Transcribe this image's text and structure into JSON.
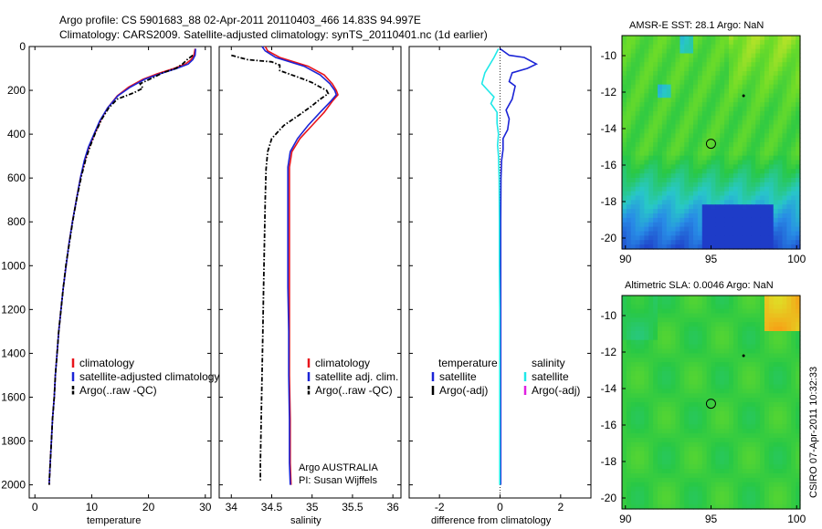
{
  "title": {
    "line1": "Argo profile: CS 5901683_88 02-Apr-2011 20110403_466 14.83S 94.997E",
    "line2": "Climatology: CARS2009. Satellite-adjusted climatology: synTS_20110401.nc (1d earlier)"
  },
  "side_label": "CSIRO 07-Apr-2011 10:32:33",
  "colors": {
    "climatology": "#e8141b",
    "satellite": "#1b24d6",
    "argo": "#000000",
    "sat_salinity": "#20e8e8",
    "argo_adj_salinity": "#e020e0"
  },
  "chart_data": [
    {
      "id": "temperature",
      "type": "line",
      "xlabel": "temperature",
      "xlim": [
        -1,
        31
      ],
      "ylim": [
        2060,
        0
      ],
      "y_ticks": [
        0,
        200,
        400,
        600,
        800,
        1000,
        1200,
        1400,
        1600,
        1800,
        2000
      ],
      "x_ticks": [
        0,
        10,
        20,
        30
      ],
      "legend": [
        {
          "label": "climatology",
          "series": "climatology"
        },
        {
          "label": "satellite-adjusted climatology",
          "series": "satellite"
        },
        {
          "label": "Argo(..raw -QC)",
          "series": "argo"
        }
      ],
      "series": [
        {
          "name": "climatology",
          "color_key": "climatology",
          "style": "solid",
          "points": [
            [
              28.2,
              10
            ],
            [
              28.0,
              40
            ],
            [
              27.5,
              60
            ],
            [
              26.5,
              80
            ],
            [
              24.5,
              100
            ],
            [
              21.5,
              125
            ],
            [
              19.0,
              150
            ],
            [
              16.5,
              185
            ],
            [
              14.5,
              225
            ],
            [
              12.8,
              280
            ],
            [
              11.5,
              340
            ],
            [
              10.5,
              400
            ],
            [
              9.5,
              460
            ],
            [
              8.8,
              520
            ],
            [
              8.0,
              600
            ],
            [
              7.3,
              700
            ],
            [
              6.6,
              800
            ],
            [
              6.0,
              900
            ],
            [
              5.5,
              1000
            ],
            [
              5.0,
              1100
            ],
            [
              4.6,
              1200
            ],
            [
              4.2,
              1300
            ],
            [
              3.9,
              1400
            ],
            [
              3.6,
              1500
            ],
            [
              3.4,
              1600
            ],
            [
              3.1,
              1700
            ],
            [
              2.9,
              1800
            ],
            [
              2.7,
              1900
            ],
            [
              2.5,
              2000
            ]
          ]
        },
        {
          "name": "satellite",
          "color_key": "satellite",
          "style": "solid",
          "points": [
            [
              28.3,
              10
            ],
            [
              28.2,
              40
            ],
            [
              27.8,
              60
            ],
            [
              27.0,
              80
            ],
            [
              25.0,
              100
            ],
            [
              22.0,
              125
            ],
            [
              19.3,
              150
            ],
            [
              16.8,
              185
            ],
            [
              14.6,
              225
            ],
            [
              12.8,
              280
            ],
            [
              11.4,
              340
            ],
            [
              10.4,
              400
            ],
            [
              9.4,
              460
            ],
            [
              8.7,
              520
            ],
            [
              8.0,
              600
            ],
            [
              7.3,
              700
            ],
            [
              6.6,
              800
            ],
            [
              6.0,
              900
            ],
            [
              5.5,
              1000
            ],
            [
              5.0,
              1100
            ],
            [
              4.6,
              1200
            ],
            [
              4.2,
              1300
            ],
            [
              3.9,
              1400
            ],
            [
              3.6,
              1500
            ],
            [
              3.4,
              1600
            ],
            [
              3.1,
              1700
            ],
            [
              2.9,
              1800
            ],
            [
              2.7,
              1900
            ],
            [
              2.5,
              2000
            ]
          ]
        },
        {
          "name": "argo",
          "color_key": "argo",
          "style": "dashdot",
          "points": [
            [
              27.8,
              40
            ],
            [
              26.8,
              60
            ],
            [
              26.0,
              80
            ],
            [
              24.8,
              100
            ],
            [
              22.5,
              120
            ],
            [
              21.0,
              140
            ],
            [
              18.5,
              170
            ],
            [
              19.0,
              190
            ],
            [
              17.5,
              210
            ],
            [
              14.5,
              240
            ],
            [
              13.0,
              280
            ],
            [
              11.8,
              330
            ],
            [
              10.7,
              390
            ],
            [
              9.8,
              450
            ],
            [
              9.0,
              510
            ],
            [
              8.2,
              590
            ],
            [
              7.4,
              690
            ],
            [
              6.7,
              790
            ],
            [
              6.1,
              890
            ],
            [
              5.5,
              990
            ],
            [
              5.0,
              1100
            ],
            [
              4.6,
              1200
            ],
            [
              4.2,
              1300
            ],
            [
              3.9,
              1400
            ],
            [
              3.6,
              1500
            ],
            [
              3.4,
              1600
            ],
            [
              3.1,
              1700
            ],
            [
              2.9,
              1800
            ],
            [
              2.7,
              1900
            ],
            [
              2.5,
              2000
            ]
          ]
        }
      ]
    },
    {
      "id": "salinity",
      "type": "line",
      "xlabel": "salinity",
      "xlim": [
        33.85,
        36.1
      ],
      "ylim": [
        2060,
        0
      ],
      "x_ticks": [
        34,
        34.5,
        35,
        35.5,
        36
      ],
      "legend": [
        {
          "label": "climatology",
          "series": "climatology"
        },
        {
          "label": "satellite adj. clim.",
          "series": "satellite"
        },
        {
          "label": "Argo(..raw -QC)",
          "series": "argo"
        }
      ],
      "annotation": {
        "line1": "Argo AUSTRALIA",
        "line2": "PI: Susan Wijffels"
      },
      "series": [
        {
          "name": "climatology",
          "color_key": "climatology",
          "style": "solid",
          "points": [
            [
              34.42,
              0
            ],
            [
              34.45,
              20
            ],
            [
              34.6,
              50
            ],
            [
              34.95,
              90
            ],
            [
              35.15,
              130
            ],
            [
              35.25,
              170
            ],
            [
              35.3,
              200
            ],
            [
              35.32,
              220
            ],
            [
              35.25,
              250
            ],
            [
              35.15,
              300
            ],
            [
              35.0,
              360
            ],
            [
              34.85,
              420
            ],
            [
              34.75,
              480
            ],
            [
              34.72,
              550
            ],
            [
              34.72,
              700
            ],
            [
              34.72,
              900
            ],
            [
              34.72,
              1100
            ],
            [
              34.72,
              1300
            ],
            [
              34.72,
              1500
            ],
            [
              34.73,
              1700
            ],
            [
              34.73,
              1900
            ],
            [
              34.74,
              2000
            ]
          ]
        },
        {
          "name": "satellite",
          "color_key": "satellite",
          "style": "solid",
          "points": [
            [
              34.38,
              0
            ],
            [
              34.42,
              20
            ],
            [
              34.55,
              50
            ],
            [
              34.9,
              90
            ],
            [
              35.1,
              130
            ],
            [
              35.22,
              170
            ],
            [
              35.28,
              200
            ],
            [
              35.3,
              220
            ],
            [
              35.23,
              250
            ],
            [
              35.1,
              300
            ],
            [
              34.95,
              360
            ],
            [
              34.82,
              420
            ],
            [
              34.73,
              480
            ],
            [
              34.7,
              550
            ],
            [
              34.7,
              700
            ],
            [
              34.7,
              900
            ],
            [
              34.7,
              1100
            ],
            [
              34.71,
              1300
            ],
            [
              34.71,
              1500
            ],
            [
              34.72,
              1700
            ],
            [
              34.72,
              1900
            ],
            [
              34.73,
              2000
            ]
          ]
        },
        {
          "name": "argo",
          "color_key": "argo",
          "style": "dashdot",
          "points": [
            [
              34.0,
              40
            ],
            [
              34.2,
              60
            ],
            [
              34.5,
              70
            ],
            [
              34.6,
              85
            ],
            [
              34.6,
              110
            ],
            [
              34.75,
              130
            ],
            [
              34.9,
              150
            ],
            [
              35.0,
              165
            ],
            [
              35.1,
              185
            ],
            [
              35.18,
              200
            ],
            [
              35.2,
              215
            ],
            [
              35.1,
              240
            ],
            [
              35.0,
              270
            ],
            [
              34.85,
              310
            ],
            [
              34.65,
              360
            ],
            [
              34.5,
              420
            ],
            [
              34.45,
              480
            ],
            [
              34.43,
              560
            ],
            [
              34.42,
              700
            ],
            [
              34.41,
              900
            ],
            [
              34.4,
              1100
            ],
            [
              34.39,
              1300
            ],
            [
              34.38,
              1500
            ],
            [
              34.37,
              1700
            ],
            [
              34.36,
              1900
            ],
            [
              34.36,
              1980
            ]
          ]
        }
      ]
    },
    {
      "id": "difference",
      "type": "line",
      "xlabel": "difference from climatology",
      "xlim": [
        -3,
        3
      ],
      "ylim": [
        2060,
        0
      ],
      "x_ticks": [
        -2,
        0,
        2
      ],
      "legend_left_title": "temperature",
      "legend_right_title": "salinity",
      "legend_left": [
        {
          "label": "satellite",
          "series": "satellite"
        },
        {
          "label": "Argo(-adj)",
          "series": "argo"
        }
      ],
      "legend_right": [
        {
          "label": "satellite",
          "series": "sat_salinity"
        },
        {
          "label": "Argo(-adj)",
          "series": "argo_adj_salinity"
        }
      ],
      "series": [
        {
          "name": "temperature satellite",
          "color_key": "satellite",
          "style": "solid",
          "points": [
            [
              0.0,
              10
            ],
            [
              0.3,
              40
            ],
            [
              0.8,
              50
            ],
            [
              1.2,
              80
            ],
            [
              0.9,
              100
            ],
            [
              0.4,
              120
            ],
            [
              0.3,
              160
            ],
            [
              0.5,
              180
            ],
            [
              0.4,
              240
            ],
            [
              0.2,
              290
            ],
            [
              0.3,
              330
            ],
            [
              0.25,
              380
            ],
            [
              0.1,
              420
            ],
            [
              0.1,
              470
            ],
            [
              0.05,
              520
            ],
            [
              0.03,
              600
            ],
            [
              0.02,
              800
            ],
            [
              0.02,
              1000
            ],
            [
              0.02,
              1200
            ],
            [
              0.02,
              1400
            ],
            [
              0.02,
              1600
            ],
            [
              0.02,
              1800
            ],
            [
              0.02,
              2000
            ]
          ]
        },
        {
          "name": "salinity satellite",
          "color_key": "sat_salinity",
          "style": "solid",
          "points": [
            [
              -0.05,
              10
            ],
            [
              -0.2,
              50
            ],
            [
              -0.5,
              120
            ],
            [
              -0.6,
              170
            ],
            [
              -0.4,
              200
            ],
            [
              -0.2,
              230
            ],
            [
              -0.3,
              260
            ],
            [
              -0.1,
              300
            ],
            [
              -0.1,
              350
            ],
            [
              -0.05,
              400
            ],
            [
              -0.08,
              450
            ],
            [
              -0.05,
              500
            ],
            [
              -0.03,
              600
            ],
            [
              -0.02,
              800
            ],
            [
              -0.02,
              1000
            ],
            [
              -0.01,
              1200
            ],
            [
              -0.01,
              1400
            ],
            [
              -0.01,
              1600
            ],
            [
              -0.01,
              1800
            ],
            [
              -0.01,
              2000
            ]
          ]
        }
      ]
    },
    {
      "id": "amsre_sst",
      "type": "heatmap",
      "title": "AMSR-E SST: 28.1 Argo: NaN",
      "xlim": [
        89.8,
        100.2
      ],
      "ylim": [
        -20.6,
        -8.9
      ],
      "x_ticks": [
        90,
        95,
        100
      ],
      "y_ticks": [
        -10,
        -12,
        -14,
        -16,
        -18,
        -20
      ],
      "argo_position": [
        94.997,
        -14.83
      ]
    },
    {
      "id": "altimetric_sla",
      "type": "heatmap",
      "title": "Altimetric SLA: 0.0046 Argo: NaN",
      "xlim": [
        89.8,
        100.2
      ],
      "ylim": [
        -20.6,
        -8.9
      ],
      "x_ticks": [
        90,
        95,
        100
      ],
      "y_ticks": [
        -10,
        -12,
        -14,
        -16,
        -18,
        -20
      ],
      "argo_position": [
        94.997,
        -14.83
      ]
    }
  ]
}
